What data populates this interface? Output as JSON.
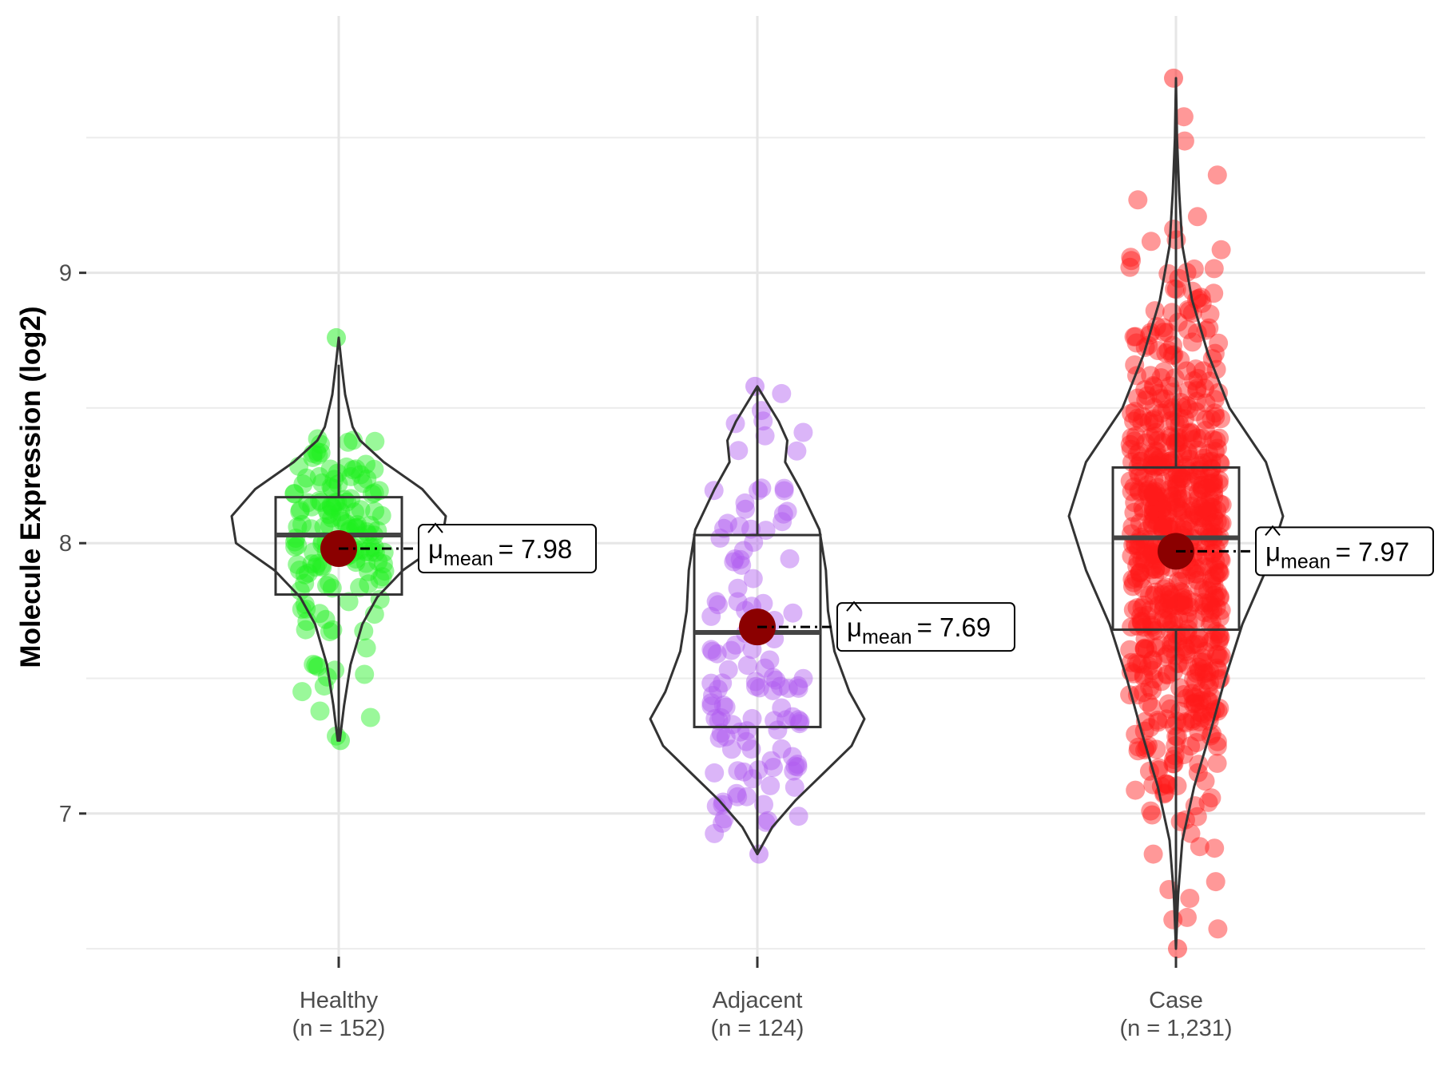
{
  "chart_data": {
    "type": "violin",
    "title": "",
    "xlabel": "",
    "ylabel": "Molecule Expression (log2)",
    "ylim": [
      6.45,
      9.95
    ],
    "y_ticks": [
      7,
      8,
      9
    ],
    "y_tick_labels": [
      "7",
      "8",
      "9"
    ],
    "grid": true,
    "mean_label_symbol": "μ",
    "mean_label_subscript": "mean",
    "categories": [
      {
        "name": "Healthy",
        "n_label": "(n = 152)",
        "n": 152,
        "color": "#1ef01e",
        "mean": 7.98,
        "mean_text": "= 7.98",
        "median": 8.03,
        "q1": 7.81,
        "q3": 8.17,
        "whisker_low": 7.27,
        "whisker_high": 8.66,
        "min": 7.27,
        "max": 8.76,
        "violin": [
          [
            7.27,
            0.01
          ],
          [
            7.4,
            0.05
          ],
          [
            7.55,
            0.11
          ],
          [
            7.7,
            0.22
          ],
          [
            7.8,
            0.36
          ],
          [
            7.9,
            0.6
          ],
          [
            8.0,
            0.96
          ],
          [
            8.1,
            1.0
          ],
          [
            8.2,
            0.78
          ],
          [
            8.3,
            0.42
          ],
          [
            8.38,
            0.2
          ],
          [
            8.43,
            0.13
          ],
          [
            8.48,
            0.1
          ],
          [
            8.55,
            0.06
          ],
          [
            8.65,
            0.03
          ],
          [
            8.76,
            0.0
          ]
        ]
      },
      {
        "name": "Adjacent",
        "n_label": "(n = 124)",
        "n": 124,
        "color": "#b05cf0",
        "mean": 7.69,
        "mean_text": "= 7.69",
        "median": 7.67,
        "q1": 7.32,
        "q3": 8.03,
        "whisker_low": 6.85,
        "whisker_high": 8.58,
        "min": 6.85,
        "max": 8.58,
        "violin": [
          [
            6.85,
            0.0
          ],
          [
            6.95,
            0.14
          ],
          [
            7.05,
            0.36
          ],
          [
            7.15,
            0.62
          ],
          [
            7.25,
            0.88
          ],
          [
            7.35,
            1.0
          ],
          [
            7.45,
            0.86
          ],
          [
            7.6,
            0.72
          ],
          [
            7.75,
            0.66
          ],
          [
            7.9,
            0.64
          ],
          [
            8.05,
            0.58
          ],
          [
            8.2,
            0.4
          ],
          [
            8.3,
            0.26
          ],
          [
            8.38,
            0.28
          ],
          [
            8.45,
            0.2
          ],
          [
            8.58,
            0.0
          ]
        ]
      },
      {
        "name": "Case",
        "n_label": "(n = 1,231)",
        "n": 1231,
        "color": "#ff1a1a",
        "mean": 7.97,
        "mean_text": "= 7.97",
        "median": 8.02,
        "q1": 7.68,
        "q3": 8.28,
        "whisker_low": 6.5,
        "whisker_high": 9.65,
        "min": 6.5,
        "max": 9.72,
        "violin": [
          [
            6.5,
            0.0
          ],
          [
            6.7,
            0.02
          ],
          [
            6.9,
            0.06
          ],
          [
            7.1,
            0.17
          ],
          [
            7.3,
            0.32
          ],
          [
            7.5,
            0.46
          ],
          [
            7.7,
            0.62
          ],
          [
            7.9,
            0.84
          ],
          [
            8.1,
            1.0
          ],
          [
            8.3,
            0.84
          ],
          [
            8.5,
            0.5
          ],
          [
            8.7,
            0.3
          ],
          [
            8.9,
            0.15
          ],
          [
            9.1,
            0.06
          ],
          [
            9.3,
            0.03
          ],
          [
            9.5,
            0.01
          ],
          [
            9.72,
            0.0
          ]
        ]
      }
    ]
  }
}
